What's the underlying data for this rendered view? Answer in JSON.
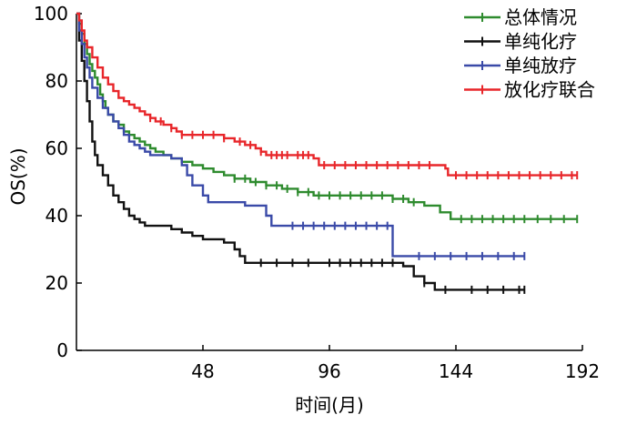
{
  "chart_data": {
    "type": "line",
    "step": true,
    "xlabel": "时间(月)",
    "ylabel": "OS(%)",
    "xlim": [
      0,
      192
    ],
    "ylim": [
      0,
      100
    ],
    "xticks": [
      48,
      96,
      144,
      192
    ],
    "yticks": [
      0,
      20,
      40,
      60,
      80,
      100
    ],
    "legend_position": "top-right",
    "grid": false,
    "series": [
      {
        "name": "总体情况",
        "color": "#2e8b2e",
        "points": [
          [
            0,
            100
          ],
          [
            1,
            97
          ],
          [
            2,
            94
          ],
          [
            3,
            91
          ],
          [
            4,
            88
          ],
          [
            5,
            85
          ],
          [
            6,
            83
          ],
          [
            7,
            81
          ],
          [
            8,
            79
          ],
          [
            9,
            76
          ],
          [
            10,
            74
          ],
          [
            11,
            72
          ],
          [
            12,
            70
          ],
          [
            14,
            68
          ],
          [
            16,
            67
          ],
          [
            18,
            65
          ],
          [
            20,
            64
          ],
          [
            22,
            63
          ],
          [
            24,
            62
          ],
          [
            26,
            61
          ],
          [
            28,
            60
          ],
          [
            30,
            59
          ],
          [
            33,
            58
          ],
          [
            36,
            57
          ],
          [
            40,
            56
          ],
          [
            44,
            55
          ],
          [
            48,
            54
          ],
          [
            52,
            53
          ],
          [
            56,
            52
          ],
          [
            60,
            51
          ],
          [
            66,
            50
          ],
          [
            72,
            49
          ],
          [
            78,
            48
          ],
          [
            84,
            47
          ],
          [
            90,
            46
          ],
          [
            120,
            45
          ],
          [
            126,
            44
          ],
          [
            132,
            43
          ],
          [
            138,
            41
          ],
          [
            142,
            39
          ],
          [
            190,
            39
          ]
        ],
        "censor_x": [
          60,
          64,
          68,
          72,
          76,
          80,
          84,
          88,
          92,
          96,
          100,
          104,
          108,
          112,
          116,
          120,
          124,
          128,
          146,
          150,
          154,
          158,
          162,
          166,
          170,
          175,
          180,
          185,
          190
        ]
      },
      {
        "name": "单纯化疗",
        "color": "#111111",
        "points": [
          [
            0,
            100
          ],
          [
            1,
            92
          ],
          [
            2,
            86
          ],
          [
            3,
            80
          ],
          [
            4,
            74
          ],
          [
            5,
            68
          ],
          [
            6,
            62
          ],
          [
            7,
            58
          ],
          [
            8,
            55
          ],
          [
            10,
            52
          ],
          [
            12,
            49
          ],
          [
            14,
            46
          ],
          [
            16,
            44
          ],
          [
            18,
            42
          ],
          [
            20,
            40
          ],
          [
            22,
            39
          ],
          [
            24,
            38
          ],
          [
            26,
            37
          ],
          [
            36,
            36
          ],
          [
            40,
            35
          ],
          [
            44,
            34
          ],
          [
            48,
            33
          ],
          [
            56,
            32
          ],
          [
            60,
            30
          ],
          [
            62,
            28
          ],
          [
            64,
            26
          ],
          [
            124,
            25
          ],
          [
            128,
            22
          ],
          [
            132,
            20
          ],
          [
            136,
            18
          ],
          [
            170,
            18
          ]
        ],
        "censor_x": [
          70,
          76,
          82,
          88,
          96,
          100,
          104,
          108,
          112,
          116,
          120,
          132,
          140,
          150,
          156,
          162,
          168,
          170
        ]
      },
      {
        "name": "单纯放疗",
        "color": "#3a4aa8",
        "points": [
          [
            0,
            100
          ],
          [
            1,
            95
          ],
          [
            2,
            91
          ],
          [
            3,
            87
          ],
          [
            4,
            84
          ],
          [
            5,
            81
          ],
          [
            6,
            78
          ],
          [
            8,
            75
          ],
          [
            10,
            72
          ],
          [
            12,
            70
          ],
          [
            14,
            68
          ],
          [
            16,
            66
          ],
          [
            18,
            64
          ],
          [
            20,
            62
          ],
          [
            22,
            61
          ],
          [
            24,
            60
          ],
          [
            26,
            59
          ],
          [
            28,
            58
          ],
          [
            36,
            57
          ],
          [
            40,
            55
          ],
          [
            42,
            52
          ],
          [
            44,
            49
          ],
          [
            48,
            46
          ],
          [
            50,
            44
          ],
          [
            64,
            43
          ],
          [
            72,
            40
          ],
          [
            74,
            37
          ],
          [
            120,
            28
          ],
          [
            170,
            28
          ]
        ],
        "censor_x": [
          82,
          86,
          90,
          94,
          98,
          102,
          106,
          110,
          114,
          118,
          130,
          136,
          142,
          148,
          154,
          160,
          166,
          170
        ]
      },
      {
        "name": "放化疗联合",
        "color": "#e8262a",
        "points": [
          [
            0,
            100
          ],
          [
            1,
            98
          ],
          [
            2,
            95
          ],
          [
            3,
            92
          ],
          [
            4,
            90
          ],
          [
            6,
            87
          ],
          [
            8,
            84
          ],
          [
            10,
            81
          ],
          [
            12,
            79
          ],
          [
            14,
            77
          ],
          [
            16,
            75
          ],
          [
            18,
            74
          ],
          [
            20,
            73
          ],
          [
            22,
            72
          ],
          [
            24,
            71
          ],
          [
            26,
            70
          ],
          [
            28,
            69
          ],
          [
            30,
            68
          ],
          [
            33,
            67
          ],
          [
            36,
            66
          ],
          [
            38,
            65
          ],
          [
            40,
            64
          ],
          [
            56,
            63
          ],
          [
            60,
            62
          ],
          [
            64,
            61
          ],
          [
            68,
            60
          ],
          [
            70,
            59
          ],
          [
            72,
            58
          ],
          [
            90,
            57
          ],
          [
            92,
            55
          ],
          [
            140,
            54
          ],
          [
            141,
            52
          ],
          [
            190,
            52
          ]
        ],
        "censor_x": [
          28,
          32,
          36,
          40,
          44,
          48,
          52,
          56,
          62,
          66,
          70,
          74,
          76,
          78,
          80,
          84,
          86,
          88,
          94,
          98,
          102,
          106,
          110,
          114,
          118,
          122,
          126,
          130,
          134,
          144,
          148,
          152,
          156,
          160,
          164,
          168,
          172,
          176,
          180,
          184,
          188,
          190
        ]
      }
    ]
  }
}
